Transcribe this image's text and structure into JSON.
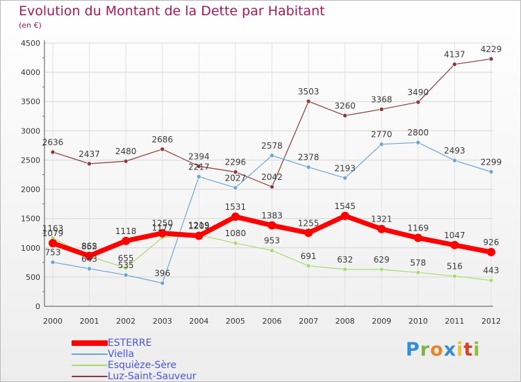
{
  "chart_data": {
    "type": "line",
    "title": "Evolution du Montant de la Dette par Habitant",
    "subtitle": "(en €)",
    "ylim": [
      0,
      4500
    ],
    "yticks": [
      0,
      500,
      1000,
      1500,
      2000,
      2500,
      3000,
      3500,
      4000,
      4500
    ],
    "x": [
      "2000",
      "2001",
      "2002",
      "2003",
      "2004",
      "2005",
      "2006",
      "2007",
      "2008",
      "2009",
      "2010",
      "2011",
      "2012"
    ],
    "grid": true,
    "legend_position": "bottom-left",
    "series": [
      {
        "name": "ESTERRE",
        "color": "#ff0000",
        "width": 7,
        "values": [
          1079,
          862,
          1118,
          1250,
          1205,
          1531,
          1383,
          1255,
          1545,
          1321,
          1169,
          1047,
          926
        ]
      },
      {
        "name": "Viella",
        "color": "#6ea5d3",
        "width": 1.2,
        "values": [
          753,
          643,
          535,
          396,
          2217,
          2027,
          2578,
          2378,
          2193,
          2770,
          2800,
          2493,
          2299
        ]
      },
      {
        "name": "Esquièze-Sère",
        "color": "#a6db6e",
        "width": 1.2,
        "values": [
          1163,
          855,
          655,
          1177,
          1219,
          1080,
          953,
          691,
          632,
          629,
          578,
          516,
          443
        ]
      },
      {
        "name": "Luz-Saint-Sauveur",
        "color": "#8b3a3a",
        "width": 1.2,
        "values": [
          2636,
          2437,
          2480,
          2686,
          2394,
          2296,
          2042,
          3503,
          3260,
          3368,
          3490,
          4137,
          4229
        ]
      }
    ]
  },
  "brand": {
    "letters": [
      "P",
      "r",
      "o",
      "x",
      "i",
      "t",
      "i"
    ],
    "colors": [
      "#2f8fd8",
      "#7cb73c",
      "#e8862a",
      "#3a8ad0",
      "#e8c42a",
      "#d0452a",
      "#8fbf3a"
    ]
  }
}
